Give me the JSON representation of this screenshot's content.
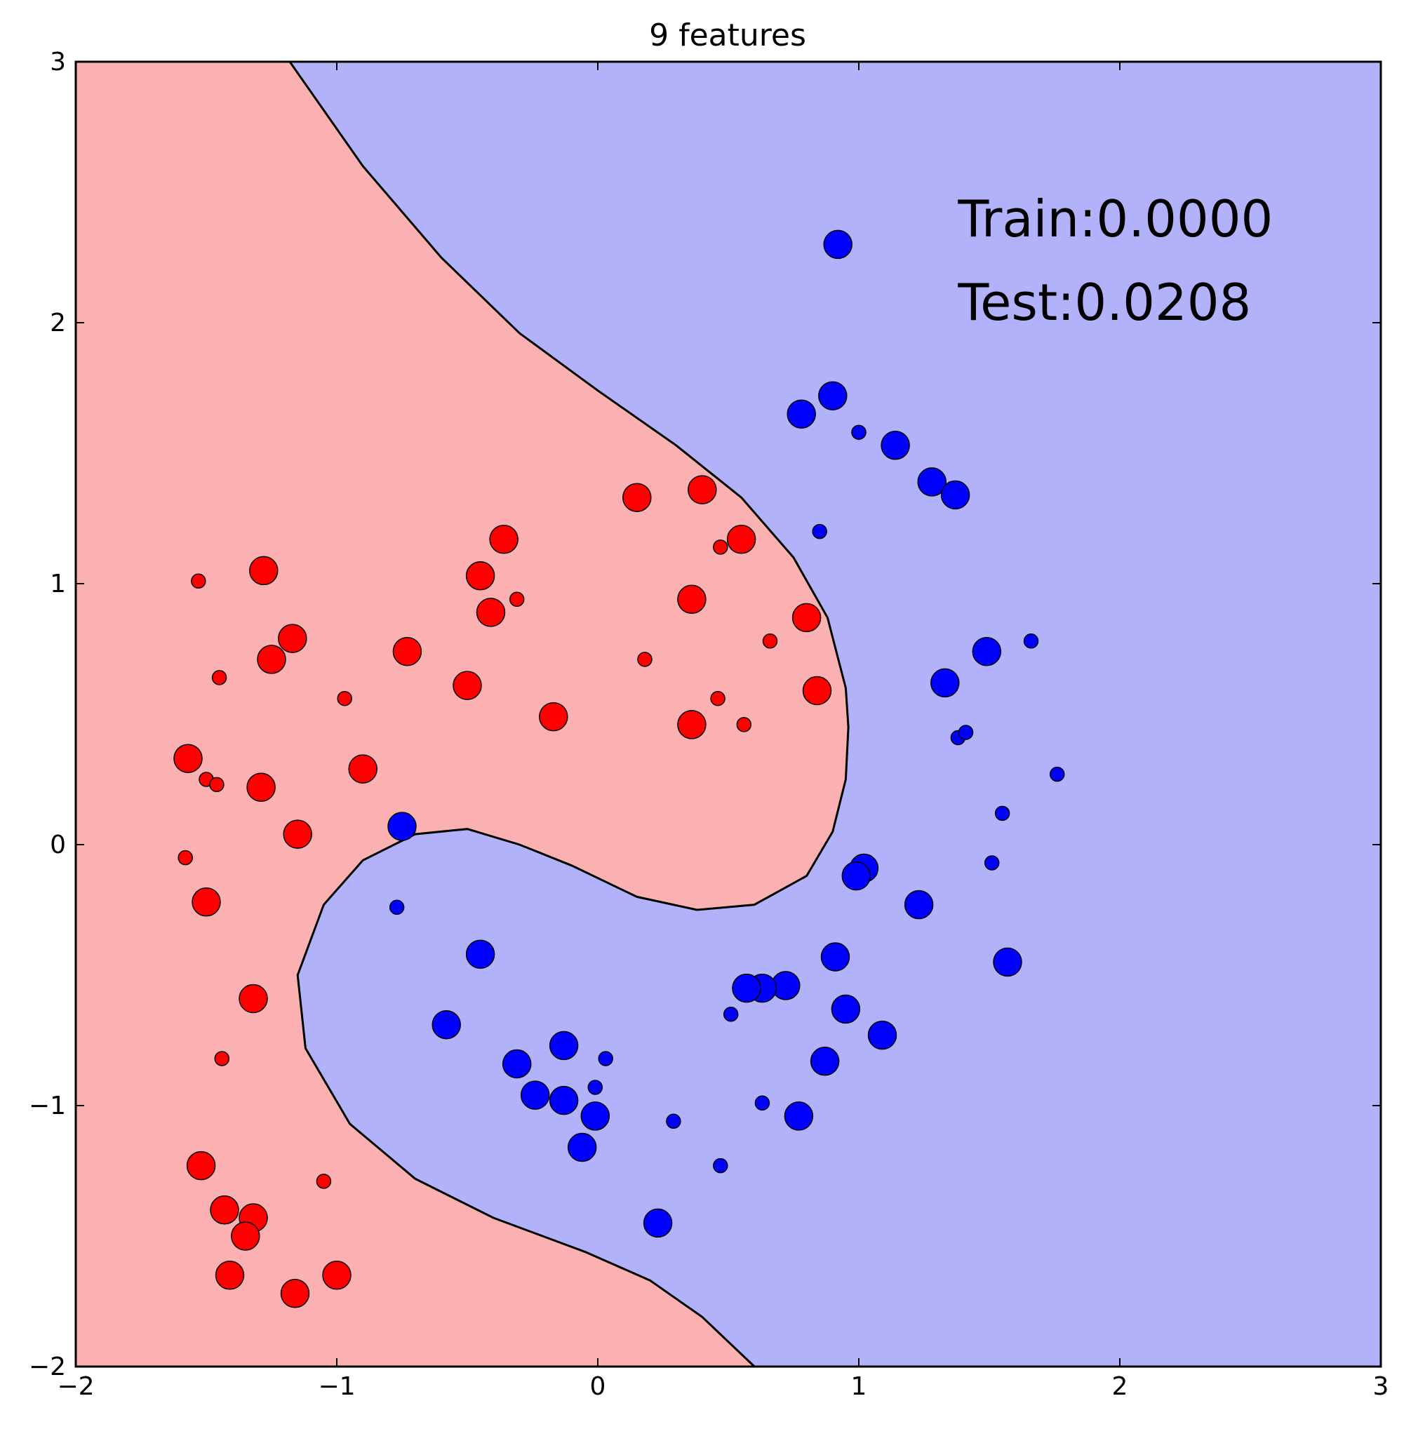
{
  "chart_data": {
    "type": "scatter",
    "title": "9 features",
    "xlabel": "",
    "ylabel": "",
    "xlim": [
      -2,
      3
    ],
    "ylim": [
      -2,
      3
    ],
    "x_ticks": [
      -2,
      -1,
      0,
      1,
      2,
      3
    ],
    "y_ticks": [
      -2,
      -1,
      0,
      1,
      2,
      3
    ],
    "x_tick_labels": [
      "−2",
      "−1",
      "0",
      "1",
      "2",
      "3"
    ],
    "y_tick_labels": [
      "−2",
      "−1",
      "0",
      "1",
      "2",
      "3"
    ],
    "grid": false,
    "legend": "none",
    "annotations": [
      {
        "text": "Train:0.0000",
        "x": 1.38,
        "y": 2.4
      },
      {
        "text": "Test:0.0208",
        "x": 1.38,
        "y": 2.08
      }
    ],
    "colors": {
      "class0_region": "#fbb1b1",
      "class1_region": "#b2b2fb",
      "class0_point": "#ff0000",
      "class1_point": "#0000ff",
      "boundary": "#000000"
    },
    "decision_boundary": [
      [
        -1.18,
        3.0
      ],
      [
        -0.9,
        2.6
      ],
      [
        -0.6,
        2.25
      ],
      [
        -0.3,
        1.96
      ],
      [
        0.0,
        1.74
      ],
      [
        0.3,
        1.53
      ],
      [
        0.55,
        1.33
      ],
      [
        0.75,
        1.1
      ],
      [
        0.88,
        0.87
      ],
      [
        0.95,
        0.6
      ],
      [
        0.96,
        0.45
      ],
      [
        0.95,
        0.25
      ],
      [
        0.9,
        0.05
      ],
      [
        0.8,
        -0.12
      ],
      [
        0.6,
        -0.23
      ],
      [
        0.38,
        -0.25
      ],
      [
        0.15,
        -0.2
      ],
      [
        -0.1,
        -0.08
      ],
      [
        -0.3,
        0.0
      ],
      [
        -0.5,
        0.06
      ],
      [
        -0.7,
        0.04
      ],
      [
        -0.9,
        -0.06
      ],
      [
        -1.05,
        -0.23
      ],
      [
        -1.15,
        -0.5
      ],
      [
        -1.12,
        -0.78
      ],
      [
        -0.95,
        -1.07
      ],
      [
        -0.7,
        -1.28
      ],
      [
        -0.4,
        -1.43
      ],
      [
        -0.05,
        -1.56
      ],
      [
        0.2,
        -1.67
      ],
      [
        0.4,
        -1.81
      ],
      [
        0.6,
        -2.0
      ]
    ],
    "series": [
      {
        "points": [
          {
            "x": -1.53,
            "y": 1.01,
            "size": "small"
          },
          {
            "x": -1.28,
            "y": 1.05,
            "size": "large"
          },
          {
            "x": -1.17,
            "y": 0.79,
            "size": "large"
          },
          {
            "x": -1.25,
            "y": 0.71,
            "size": "large"
          },
          {
            "x": -1.45,
            "y": 0.64,
            "size": "small"
          },
          {
            "x": -0.97,
            "y": 0.56,
            "size": "small"
          },
          {
            "x": -0.73,
            "y": 0.74,
            "size": "large"
          },
          {
            "x": -0.5,
            "y": 0.61,
            "size": "large"
          },
          {
            "x": -0.45,
            "y": 1.03,
            "size": "large"
          },
          {
            "x": -0.41,
            "y": 0.89,
            "size": "large"
          },
          {
            "x": -0.36,
            "y": 1.17,
            "size": "large"
          },
          {
            "x": -0.31,
            "y": 0.94,
            "size": "small"
          },
          {
            "x": -0.17,
            "y": 0.49,
            "size": "large"
          },
          {
            "x": 0.15,
            "y": 1.33,
            "size": "large"
          },
          {
            "x": 0.18,
            "y": 0.71,
            "size": "small"
          },
          {
            "x": 0.36,
            "y": 0.94,
            "size": "large"
          },
          {
            "x": 0.4,
            "y": 1.36,
            "size": "large"
          },
          {
            "x": 0.47,
            "y": 1.14,
            "size": "small"
          },
          {
            "x": 0.55,
            "y": 1.17,
            "size": "large"
          },
          {
            "x": 0.66,
            "y": 0.78,
            "size": "small"
          },
          {
            "x": 0.8,
            "y": 0.87,
            "size": "large"
          },
          {
            "x": 0.84,
            "y": 0.59,
            "size": "large"
          },
          {
            "x": 0.46,
            "y": 0.56,
            "size": "small"
          },
          {
            "x": 0.36,
            "y": 0.46,
            "size": "large"
          },
          {
            "x": 0.56,
            "y": 0.46,
            "size": "small"
          },
          {
            "x": -1.57,
            "y": 0.33,
            "size": "large"
          },
          {
            "x": -1.5,
            "y": 0.25,
            "size": "small"
          },
          {
            "x": -1.46,
            "y": 0.23,
            "size": "small"
          },
          {
            "x": -1.29,
            "y": 0.22,
            "size": "large"
          },
          {
            "x": -0.9,
            "y": 0.29,
            "size": "large"
          },
          {
            "x": -1.15,
            "y": 0.04,
            "size": "large"
          },
          {
            "x": -1.58,
            "y": -0.05,
            "size": "small"
          },
          {
            "x": -1.5,
            "y": -0.22,
            "size": "large"
          },
          {
            "x": -1.32,
            "y": -0.59,
            "size": "large"
          },
          {
            "x": -1.44,
            "y": -0.82,
            "size": "small"
          },
          {
            "x": -1.52,
            "y": -1.23,
            "size": "large"
          },
          {
            "x": -1.43,
            "y": -1.4,
            "size": "large"
          },
          {
            "x": -1.32,
            "y": -1.43,
            "size": "large"
          },
          {
            "x": -1.35,
            "y": -1.5,
            "size": "large"
          },
          {
            "x": -1.41,
            "y": -1.65,
            "size": "large"
          },
          {
            "x": -1.16,
            "y": -1.72,
            "size": "large"
          },
          {
            "x": -1.0,
            "y": -1.65,
            "size": "large"
          },
          {
            "x": -1.05,
            "y": -1.29,
            "size": "small"
          }
        ]
      },
      {
        "points": [
          {
            "x": 0.92,
            "y": 2.3,
            "size": "large"
          },
          {
            "x": 0.9,
            "y": 1.72,
            "size": "large"
          },
          {
            "x": 0.78,
            "y": 1.65,
            "size": "large"
          },
          {
            "x": 1.0,
            "y": 1.58,
            "size": "small"
          },
          {
            "x": 1.14,
            "y": 1.53,
            "size": "large"
          },
          {
            "x": 1.28,
            "y": 1.39,
            "size": "large"
          },
          {
            "x": 1.37,
            "y": 1.34,
            "size": "large"
          },
          {
            "x": 0.85,
            "y": 1.2,
            "size": "small"
          },
          {
            "x": 1.49,
            "y": 0.74,
            "size": "large"
          },
          {
            "x": 1.66,
            "y": 0.78,
            "size": "small"
          },
          {
            "x": 1.33,
            "y": 0.62,
            "size": "large"
          },
          {
            "x": 1.38,
            "y": 0.41,
            "size": "small"
          },
          {
            "x": 1.41,
            "y": 0.43,
            "size": "small"
          },
          {
            "x": 1.76,
            "y": 0.27,
            "size": "small"
          },
          {
            "x": 1.55,
            "y": 0.12,
            "size": "small"
          },
          {
            "x": 1.51,
            "y": -0.07,
            "size": "small"
          },
          {
            "x": 1.02,
            "y": -0.09,
            "size": "large"
          },
          {
            "x": 0.99,
            "y": -0.12,
            "size": "large"
          },
          {
            "x": 1.23,
            "y": -0.23,
            "size": "large"
          },
          {
            "x": 1.57,
            "y": -0.45,
            "size": "large"
          },
          {
            "x": 0.91,
            "y": -0.43,
            "size": "large"
          },
          {
            "x": 0.72,
            "y": -0.54,
            "size": "large"
          },
          {
            "x": 0.63,
            "y": -0.55,
            "size": "large"
          },
          {
            "x": 0.57,
            "y": -0.55,
            "size": "large"
          },
          {
            "x": 0.51,
            "y": -0.65,
            "size": "small"
          },
          {
            "x": 0.95,
            "y": -0.63,
            "size": "large"
          },
          {
            "x": 1.09,
            "y": -0.73,
            "size": "large"
          },
          {
            "x": 0.87,
            "y": -0.83,
            "size": "large"
          },
          {
            "x": 0.63,
            "y": -0.99,
            "size": "small"
          },
          {
            "x": 0.77,
            "y": -1.04,
            "size": "large"
          },
          {
            "x": 0.47,
            "y": -1.23,
            "size": "small"
          },
          {
            "x": 0.29,
            "y": -1.06,
            "size": "small"
          },
          {
            "x": 0.23,
            "y": -1.45,
            "size": "large"
          },
          {
            "x": -0.75,
            "y": 0.07,
            "size": "large"
          },
          {
            "x": -0.77,
            "y": -0.24,
            "size": "small"
          },
          {
            "x": -0.45,
            "y": -0.42,
            "size": "large"
          },
          {
            "x": -0.58,
            "y": -0.69,
            "size": "large"
          },
          {
            "x": -0.31,
            "y": -0.84,
            "size": "large"
          },
          {
            "x": -0.24,
            "y": -0.96,
            "size": "large"
          },
          {
            "x": -0.13,
            "y": -0.77,
            "size": "large"
          },
          {
            "x": -0.13,
            "y": -0.98,
            "size": "large"
          },
          {
            "x": 0.03,
            "y": -0.82,
            "size": "small"
          },
          {
            "x": -0.01,
            "y": -0.93,
            "size": "small"
          },
          {
            "x": -0.01,
            "y": -1.04,
            "size": "large"
          },
          {
            "x": -0.06,
            "y": -1.16,
            "size": "large"
          }
        ]
      }
    ]
  }
}
